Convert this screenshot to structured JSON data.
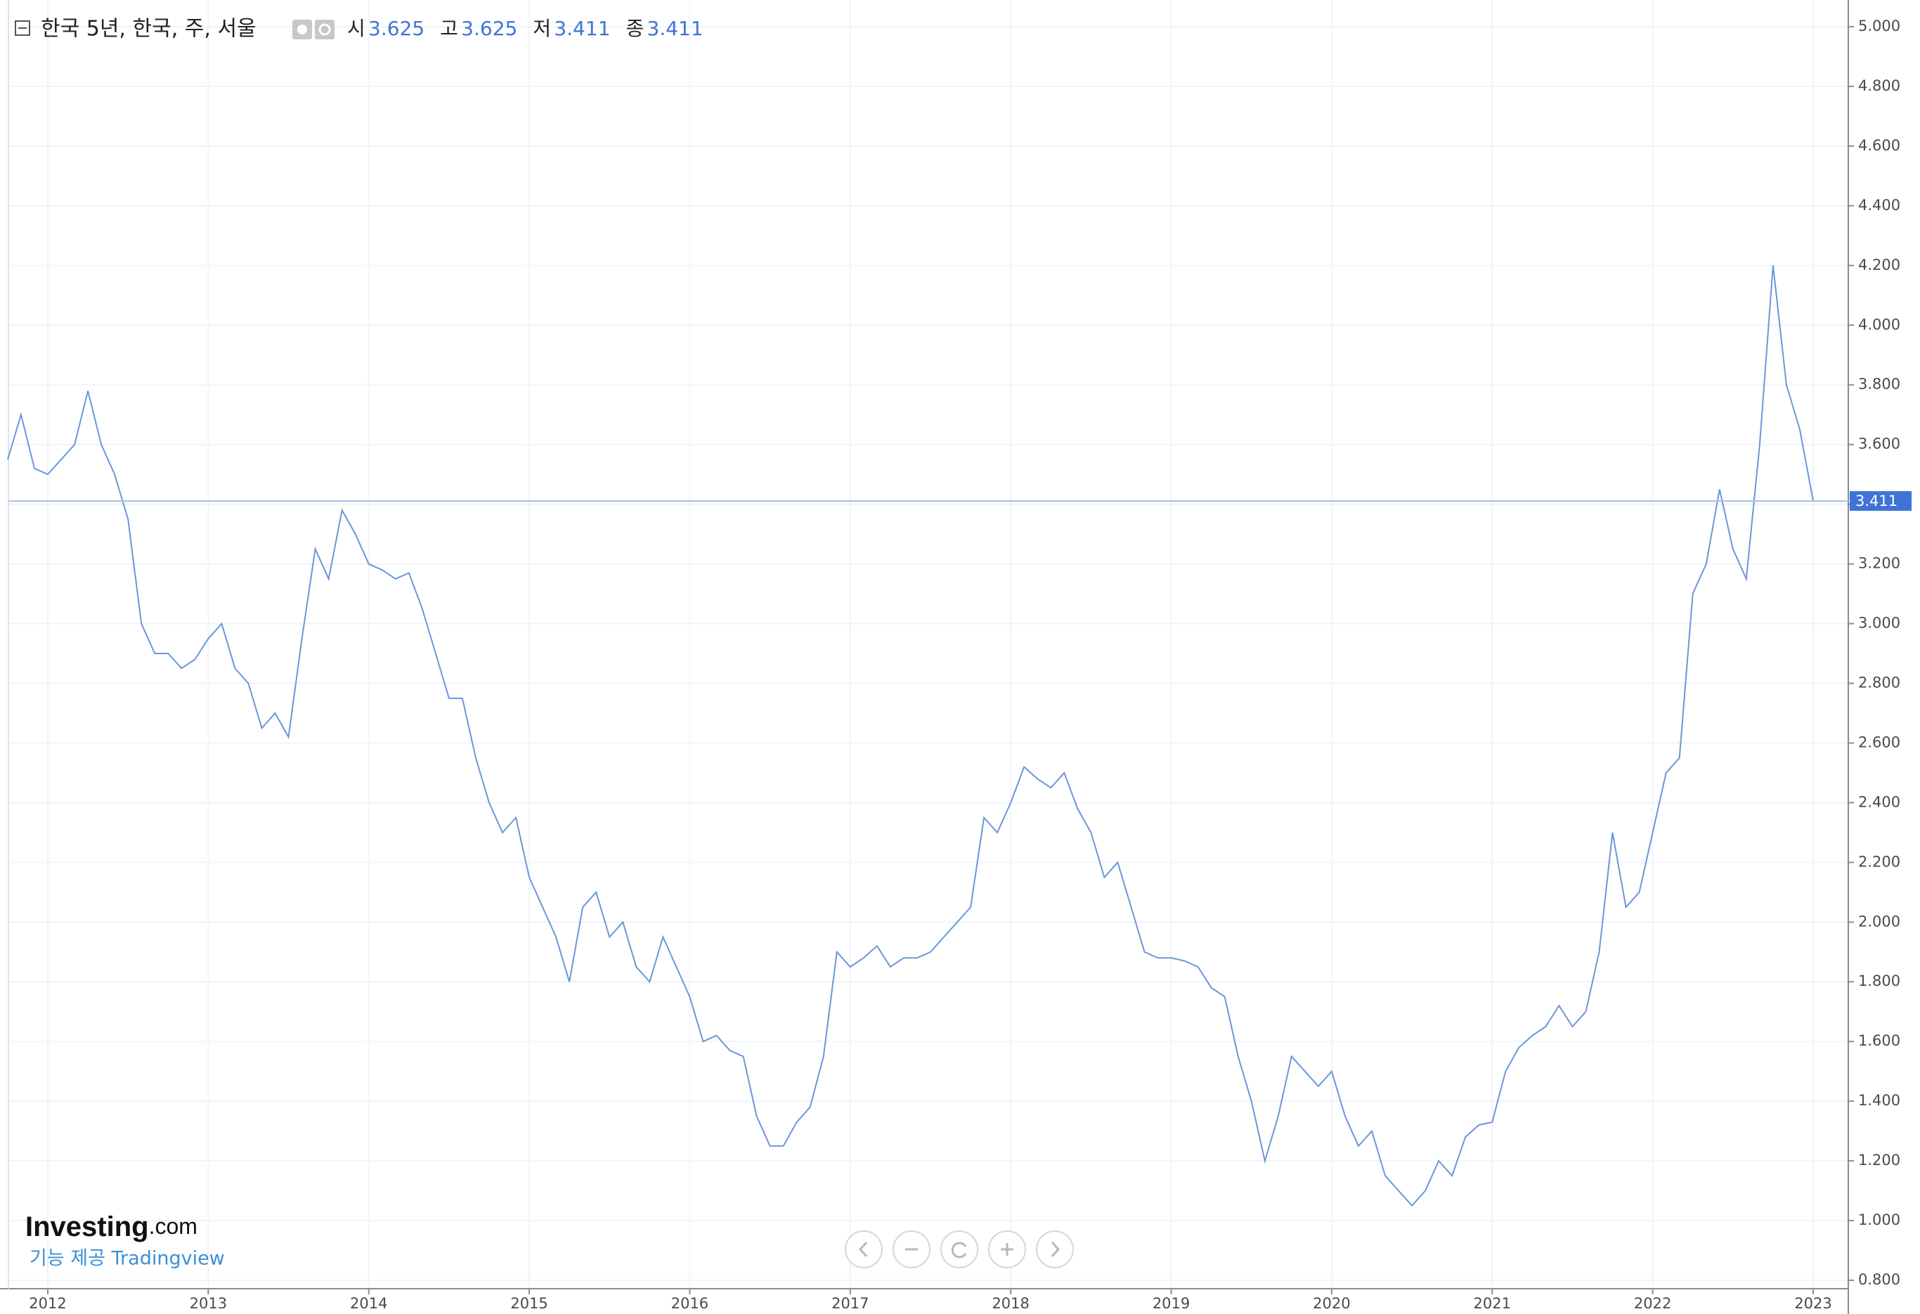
{
  "chart_data": {
    "type": "line",
    "title": "한국 5년, 한국, 주, 서울",
    "ohlc": [
      {
        "name": "시",
        "value": 3.625
      },
      {
        "name": "고",
        "value": 3.625
      },
      {
        "name": "저",
        "value": 3.411
      },
      {
        "name": "종",
        "value": 3.411
      }
    ],
    "last_value": 3.411,
    "color": "#6a97d9",
    "grid": true,
    "logo": "Investing",
    "logo_suffix": ".com",
    "credit": "기능 제공 Tradingview",
    "categories": [
      null,
      null,
      null,
      "2012",
      null,
      null,
      null,
      null,
      null,
      null,
      null,
      null,
      null,
      null,
      null,
      "2013",
      null,
      null,
      null,
      null,
      null,
      null,
      null,
      null,
      null,
      null,
      null,
      "2014",
      null,
      null,
      null,
      null,
      null,
      null,
      null,
      null,
      null,
      null,
      null,
      "2015",
      null,
      null,
      null,
      null,
      null,
      null,
      null,
      null,
      null,
      null,
      null,
      "2016",
      null,
      null,
      null,
      null,
      null,
      null,
      null,
      null,
      null,
      null,
      null,
      "2017",
      null,
      null,
      null,
      null,
      null,
      null,
      null,
      null,
      null,
      null,
      null,
      "2018",
      null,
      null,
      null,
      null,
      null,
      null,
      null,
      null,
      null,
      null,
      null,
      "2019",
      null,
      null,
      null,
      null,
      null,
      null,
      null,
      null,
      null,
      null,
      null,
      "2020",
      null,
      null,
      null,
      null,
      null,
      null,
      null,
      null,
      null,
      null,
      null,
      "2021",
      null,
      null,
      null,
      null,
      null,
      null,
      null,
      null,
      null,
      null,
      null,
      "2022",
      null,
      null,
      null,
      null,
      null,
      null,
      null,
      null,
      null,
      null,
      null,
      "2023"
    ],
    "values": [
      3.55,
      3.7,
      3.52,
      3.5,
      3.55,
      3.6,
      3.78,
      3.6,
      3.5,
      3.35,
      3.0,
      2.9,
      2.9,
      2.85,
      2.88,
      2.95,
      3.0,
      2.85,
      2.8,
      2.65,
      2.7,
      2.62,
      2.95,
      3.25,
      3.15,
      3.38,
      3.3,
      3.2,
      3.18,
      3.15,
      3.17,
      3.05,
      2.9,
      2.75,
      2.75,
      2.55,
      2.4,
      2.3,
      2.35,
      2.15,
      2.05,
      1.95,
      1.8,
      2.05,
      2.1,
      1.95,
      2.0,
      1.85,
      1.8,
      1.95,
      1.85,
      1.75,
      1.6,
      1.62,
      1.57,
      1.55,
      1.35,
      1.25,
      1.25,
      1.33,
      1.38,
      1.55,
      1.9,
      1.85,
      1.88,
      1.92,
      1.85,
      1.88,
      1.88,
      1.9,
      1.95,
      2.0,
      2.05,
      2.35,
      2.3,
      2.4,
      2.52,
      2.48,
      2.45,
      2.5,
      2.38,
      2.3,
      2.15,
      2.2,
      2.05,
      1.9,
      1.88,
      1.88,
      1.87,
      1.85,
      1.78,
      1.75,
      1.55,
      1.4,
      1.2,
      1.35,
      1.55,
      1.5,
      1.45,
      1.5,
      1.35,
      1.25,
      1.3,
      1.15,
      1.1,
      1.05,
      1.1,
      1.2,
      1.15,
      1.28,
      1.32,
      1.33,
      1.5,
      1.58,
      1.62,
      1.65,
      1.72,
      1.65,
      1.7,
      1.9,
      2.3,
      2.05,
      2.1,
      2.3,
      2.5,
      2.55,
      3.1,
      3.2,
      3.45,
      3.25,
      3.15,
      3.6,
      4.2,
      3.8,
      3.65,
      3.411
    ],
    "ylim": [
      0.8,
      5.0
    ],
    "yticks": [
      {
        "value": 0.8,
        "label": "0.800"
      },
      {
        "value": 1.0,
        "label": "1.000"
      },
      {
        "value": 1.2,
        "label": "1.200"
      },
      {
        "value": 1.4,
        "label": "1.400"
      },
      {
        "value": 1.6,
        "label": "1.600"
      },
      {
        "value": 1.8,
        "label": "1.800"
      },
      {
        "value": 2.0,
        "label": "2.000"
      },
      {
        "value": 2.2,
        "label": "2.200"
      },
      {
        "value": 2.4,
        "label": "2.400"
      },
      {
        "value": 2.6,
        "label": "2.600"
      },
      {
        "value": 2.8,
        "label": "2.800"
      },
      {
        "value": 3.0,
        "label": "3.000"
      },
      {
        "value": 3.2,
        "label": "3.200"
      },
      {
        "value": 3.4,
        "label": "3.400"
      },
      {
        "value": 3.6,
        "label": "3.600"
      },
      {
        "value": 3.8,
        "label": "3.800"
      },
      {
        "value": 4.0,
        "label": "4.000"
      },
      {
        "value": 4.2,
        "label": "4.200"
      },
      {
        "value": 4.4,
        "label": "4.400"
      },
      {
        "value": 4.6,
        "label": "4.600"
      },
      {
        "value": 4.8,
        "label": "4.800"
      },
      {
        "value": 5.0,
        "label": "5.000"
      }
    ]
  }
}
